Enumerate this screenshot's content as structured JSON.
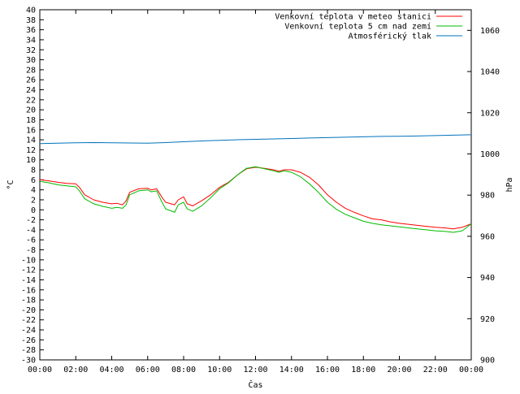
{
  "colors": {
    "air_temp": "#ff0000",
    "ground_temp": "#00bb00",
    "pressure": "#0072bd",
    "axis": "#000000"
  },
  "chart_data": {
    "type": "line",
    "title": "",
    "xlabel": "Čas",
    "ylabel_left": "°C",
    "ylabel_right": "hPa",
    "x_unit": "hours",
    "x_range": [
      0,
      24
    ],
    "x_ticks": [
      0,
      2,
      4,
      6,
      8,
      10,
      12,
      14,
      16,
      18,
      20,
      22,
      24
    ],
    "x_tick_labels": [
      "00:00",
      "02:00",
      "04:00",
      "06:00",
      "08:00",
      "10:00",
      "12:00",
      "14:00",
      "16:00",
      "18:00",
      "20:00",
      "22:00",
      "00:00"
    ],
    "y_left_range": [
      -30,
      40
    ],
    "y_left_tick_step": 2,
    "y_right_range": [
      900,
      1070
    ],
    "y_right_ticks": [
      900,
      920,
      940,
      960,
      980,
      1000,
      1020,
      1040,
      1060
    ],
    "grid": false,
    "legend_position": "top-right",
    "series": [
      {
        "name": "Venkovní teplota v meteo stanici",
        "axis": "left",
        "color_key": "air_temp",
        "x": [
          0,
          0.5,
          1,
          1.5,
          2,
          2.2,
          2.5,
          3,
          3.5,
          4,
          4.3,
          4.6,
          4.8,
          5,
          5.5,
          6,
          6.2,
          6.5,
          6.8,
          7,
          7.3,
          7.5,
          7.7,
          8,
          8.2,
          8.5,
          9,
          9.5,
          10,
          10.5,
          11,
          11.5,
          12,
          12.5,
          13,
          13.3,
          13.6,
          14,
          14.5,
          15,
          15.5,
          16,
          16.5,
          17,
          17.5,
          18,
          18.5,
          19,
          19.5,
          20,
          20.5,
          21,
          21.5,
          22,
          22.5,
          23,
          23.5,
          24
        ],
        "y": [
          6,
          5.8,
          5.5,
          5.3,
          5.2,
          4.5,
          3,
          2,
          1.5,
          1.2,
          1.3,
          1,
          1.8,
          3.5,
          4.2,
          4.3,
          4,
          4.2,
          2.5,
          1.5,
          1.2,
          1,
          2,
          2.6,
          1.2,
          0.8,
          1.8,
          3,
          4.5,
          5.5,
          7,
          8.2,
          8.5,
          8.3,
          8,
          7.7,
          8,
          8,
          7.5,
          6.5,
          5,
          3,
          1.5,
          0.3,
          -0.5,
          -1.2,
          -1.8,
          -2,
          -2.4,
          -2.7,
          -2.9,
          -3.1,
          -3.3,
          -3.5,
          -3.6,
          -3.8,
          -3.5,
          -2.8
        ]
      },
      {
        "name": "Venkovní teplota 5 cm nad zemí",
        "axis": "left",
        "color_key": "ground_temp",
        "x": [
          0,
          0.5,
          1,
          1.5,
          2,
          2.2,
          2.5,
          3,
          3.5,
          4,
          4.3,
          4.6,
          4.8,
          5,
          5.5,
          6,
          6.2,
          6.5,
          6.8,
          7,
          7.3,
          7.5,
          7.7,
          8,
          8.2,
          8.5,
          9,
          9.5,
          10,
          10.5,
          11,
          11.5,
          12,
          12.5,
          13,
          13.3,
          13.6,
          14,
          14.5,
          15,
          15.5,
          16,
          16.5,
          17,
          17.5,
          18,
          18.5,
          19,
          19.5,
          20,
          20.5,
          21,
          21.5,
          22,
          22.5,
          23,
          23.5,
          24
        ],
        "y": [
          5.7,
          5.4,
          5,
          4.8,
          4.6,
          3.8,
          2.2,
          1.2,
          0.7,
          0.3,
          0.5,
          0.3,
          1,
          3,
          3.8,
          4,
          3.6,
          3.8,
          1.5,
          0.2,
          -0.2,
          -0.5,
          1,
          1.5,
          0.2,
          -0.3,
          0.8,
          2.4,
          4.2,
          5.4,
          7,
          8.3,
          8.6,
          8.2,
          7.8,
          7.5,
          7.8,
          7.5,
          6.6,
          5.2,
          3.5,
          1.5,
          0.1,
          -0.9,
          -1.6,
          -2.3,
          -2.7,
          -3,
          -3.2,
          -3.4,
          -3.6,
          -3.8,
          -4,
          -4.2,
          -4.3,
          -4.5,
          -4.2,
          -2.8
        ]
      },
      {
        "name": "Atmosférický tlak",
        "axis": "right",
        "color_key": "pressure",
        "x": [
          0,
          1,
          2,
          3,
          4,
          5,
          6,
          7,
          8,
          9,
          10,
          11,
          12,
          13,
          14,
          15,
          16,
          17,
          18,
          19,
          20,
          21,
          22,
          23,
          24
        ],
        "y": [
          1005,
          1005.2,
          1005.4,
          1005.5,
          1005.4,
          1005.3,
          1005.2,
          1005.5,
          1005.9,
          1006.3,
          1006.6,
          1006.9,
          1007.1,
          1007.3,
          1007.5,
          1007.7,
          1007.9,
          1008.1,
          1008.3,
          1008.5,
          1008.6,
          1008.7,
          1008.9,
          1009.1,
          1009.3
        ]
      }
    ]
  }
}
